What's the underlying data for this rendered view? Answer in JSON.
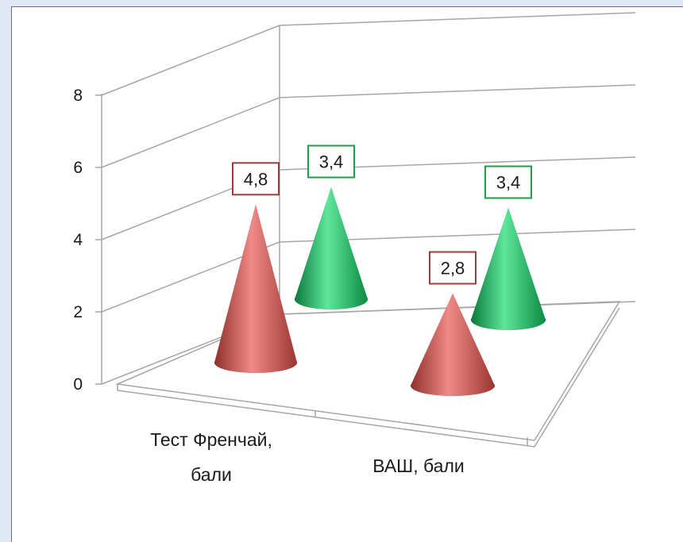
{
  "chart_data": {
    "type": "bar",
    "shape": "3d-cone",
    "categories": [
      [
        "Тест Френчай,",
        "бали"
      ],
      [
        "ВАШ, бали"
      ]
    ],
    "series": [
      {
        "values": [
          4.8,
          2.8
        ],
        "labels": [
          "4,8",
          "2,8"
        ]
      },
      {
        "values": [
          3.4,
          3.4
        ],
        "labels": [
          "3,4",
          "3,4"
        ]
      }
    ],
    "yticks": [
      "0",
      "2",
      "4",
      "6",
      "8"
    ],
    "ylim": [
      0,
      8
    ],
    "grid": true,
    "legend": "none",
    "colors": {
      "series_1": "#c0504d",
      "series_1_label_border": "#9c3d3a",
      "series_2": "#00a84f",
      "series_2_label_border": "#1a9e4a"
    },
    "title": "",
    "xlabel": "",
    "ylabel": ""
  }
}
